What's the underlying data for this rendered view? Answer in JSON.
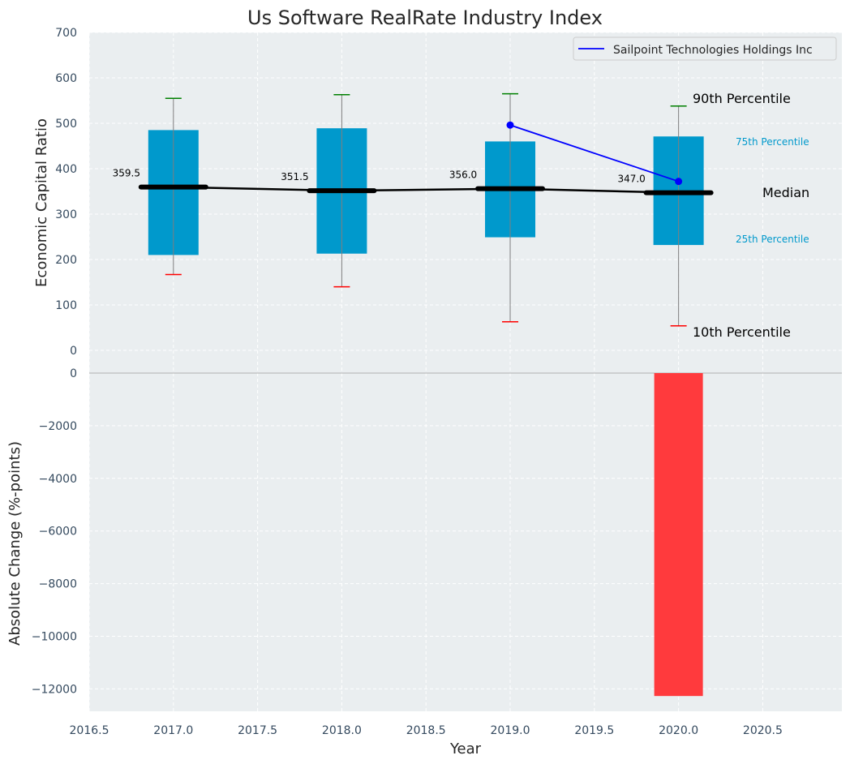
{
  "chart_data": [
    {
      "type": "box",
      "title": "Us Software RealRate Industry Index",
      "ylabel": "Economic Capital Ratio",
      "xlabel": "Year",
      "xlim": [
        2016.5,
        2020.97
      ],
      "ylim": [
        -50,
        700
      ],
      "yticks": [
        0,
        100,
        200,
        300,
        400,
        500,
        600,
        700
      ],
      "grid": true,
      "legend_position": "top-right",
      "boxes": [
        {
          "x": 2017,
          "p10": 167,
          "p25": 210,
          "median": 359.5,
          "p75": 485,
          "p90": 555,
          "median_label": "359.5"
        },
        {
          "x": 2018,
          "p10": 140,
          "p25": 213,
          "median": 351.5,
          "p75": 489,
          "p90": 563,
          "median_label": "351.5"
        },
        {
          "x": 2019,
          "p10": 63,
          "p25": 249,
          "median": 356.0,
          "p75": 460,
          "p90": 565,
          "median_label": "356.0"
        },
        {
          "x": 2020,
          "p10": 54,
          "p25": 232,
          "median": 347.0,
          "p75": 471,
          "p90": 538,
          "median_label": "347.0"
        }
      ],
      "series": [
        {
          "name": "Sailpoint Technologies Holdings Inc",
          "color": "#0000ff",
          "x": [
            2019,
            2020
          ],
          "values": [
            496,
            372
          ]
        }
      ],
      "annotations": {
        "p90": "90th Percentile",
        "p75": "75th Percentile",
        "median": "Median",
        "p25": "25th Percentile",
        "p10": "10th Percentile"
      },
      "colors": {
        "box": "#0099cc",
        "median_line": "#000000",
        "whisker_top": "#008000",
        "whisker_bottom": "#ff0000",
        "annotation_small": "#0099cc"
      }
    },
    {
      "type": "bar",
      "ylabel": "Absolute Change (%-points)",
      "xlabel": "Year",
      "xlim": [
        2016.5,
        2020.97
      ],
      "ylim": [
        -12850,
        0
      ],
      "yticks": [
        0,
        -2000,
        -4000,
        -6000,
        -8000,
        -10000,
        -12000
      ],
      "ytick_labels": [
        "0",
        "−2000",
        "−4000",
        "−6000",
        "−8000",
        "−10000",
        "−12000"
      ],
      "xticks": [
        "2016.5",
        "2017.0",
        "2017.5",
        "2018.0",
        "2018.5",
        "2019.0",
        "2019.5",
        "2020.0",
        "2020.5"
      ],
      "grid": true,
      "bars": [
        {
          "x": 2020,
          "value": -12270,
          "color": "#ff3a3d"
        }
      ]
    }
  ]
}
